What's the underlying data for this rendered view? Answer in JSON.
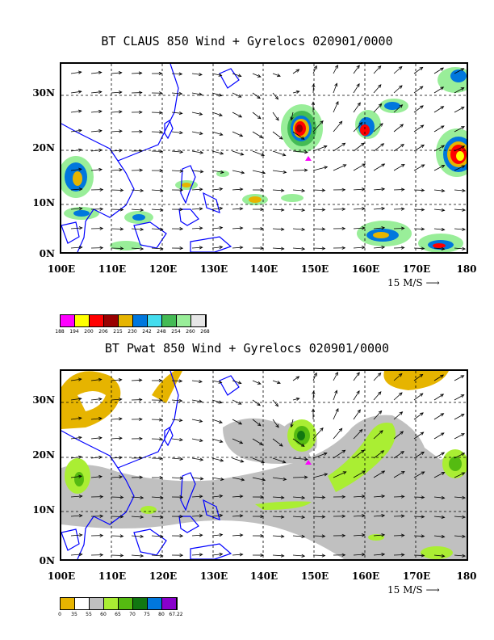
{
  "panels": [
    {
      "title": "BT CLAUS 850 Wind + Gyrelocs 020901/0000",
      "y_labels": [
        "30N",
        "20N",
        "10N",
        "0N"
      ],
      "x_labels": [
        "100E",
        "110E",
        "120E",
        "130E",
        "140E",
        "150E",
        "160E",
        "170E",
        "180"
      ],
      "reference_vector": "15 M/S",
      "legend": {
        "colors": [
          "#ff00ff",
          "#ffff00",
          "#ff0000",
          "#990000",
          "#e6b400",
          "#0077dd",
          "#44ddee",
          "#44bb55",
          "#99ee99",
          "#e6e6e6"
        ],
        "ticks": [
          "188",
          "194",
          "200",
          "206",
          "215",
          "230",
          "242",
          "248",
          "254",
          "260",
          "268"
        ]
      }
    },
    {
      "title": "BT Pwat 850 Wind + Gyrelocs 020901/0000",
      "y_labels": [
        "30N",
        "20N",
        "10N",
        "0N"
      ],
      "x_labels": [
        "100E",
        "110E",
        "120E",
        "130E",
        "140E",
        "150E",
        "160E",
        "170E",
        "180"
      ],
      "reference_vector": "15 M/S",
      "legend": {
        "colors": [
          "#e6b400",
          "#ffffff",
          "#c0c0c0",
          "#aaee33",
          "#55bb11",
          "#117711",
          "#0077dd",
          "#8800cc"
        ],
        "ticks": [
          "0",
          "35",
          "55",
          "60",
          "65",
          "70",
          "75",
          "80",
          "67.22"
        ]
      }
    }
  ],
  "gyre_center": {
    "lon_east": 148.5,
    "lat_north": 19
  },
  "colors": {
    "coastline": "#0000ff",
    "gyre_marker": "#ff00ff",
    "grid": "#000000"
  }
}
